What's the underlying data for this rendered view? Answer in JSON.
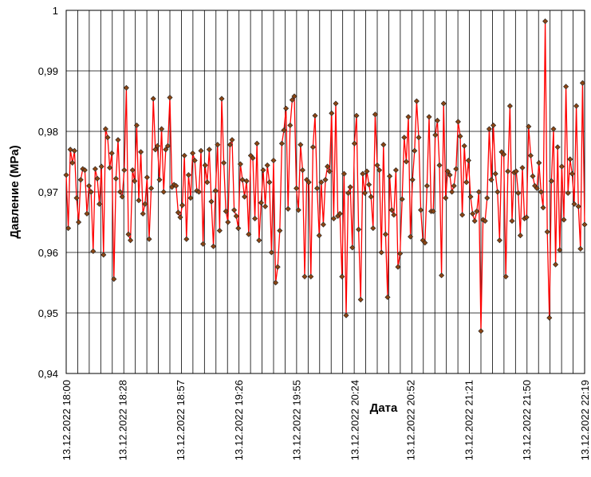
{
  "chart_data": {
    "type": "line",
    "title": "",
    "xlabel": "Дата",
    "ylabel": "Давление (MPa)",
    "ylim": [
      0.94,
      1.0
    ],
    "y_ticks": [
      0.94,
      0.95,
      0.96,
      0.97,
      0.98,
      0.99,
      1.0
    ],
    "y_tick_labels": [
      "0,94",
      "0,95",
      "0,96",
      "0,97",
      "0,98",
      "0,99",
      "1"
    ],
    "x_range_minutes": [
      0,
      259
    ],
    "x_tick_labels": [
      "13.12.2022 18:00",
      "13.12.2022 18:28",
      "13.12.2022 18:57",
      "13.12.2022 19:26",
      "13.12.2022 19:55",
      "13.12.2022 20:24",
      "13.12.2022 20:52",
      "13.12.2022 21:21",
      "13.12.2022 21:50",
      "13.12.2022 22:19"
    ],
    "x_tick_minutes": [
      0,
      28,
      57,
      86,
      115,
      144,
      172,
      201,
      230,
      259
    ],
    "grid": true,
    "colors": {
      "line": "#ff0000",
      "marker_fill": "#8b4513",
      "marker_edge": "#222222",
      "grid": "#000000"
    },
    "series": [
      {
        "values": [
          0.9728,
          0.964,
          0.977,
          0.9748,
          0.9768,
          0.969,
          0.965,
          0.972,
          0.9738,
          0.9736,
          0.9664,
          0.971,
          0.97,
          0.9602,
          0.9738,
          0.9722,
          0.968,
          0.9742,
          0.9596,
          0.9804,
          0.979,
          0.974,
          0.9764,
          0.9556,
          0.9722,
          0.9786,
          0.97,
          0.9692,
          0.9736,
          0.9872,
          0.963,
          0.962,
          0.9736,
          0.9718,
          0.981,
          0.9686,
          0.9766,
          0.9664,
          0.968,
          0.9724,
          0.9622,
          0.9706,
          0.9854,
          0.977,
          0.9776,
          0.972,
          0.9804,
          0.97,
          0.977,
          0.9776,
          0.9856,
          0.9708,
          0.9712,
          0.971,
          0.9666,
          0.9658,
          0.9678,
          0.976,
          0.9622,
          0.9728,
          0.969,
          0.9764,
          0.9752,
          0.9702,
          0.97,
          0.9768,
          0.9614,
          0.9744,
          0.9716,
          0.977,
          0.9684,
          0.961,
          0.9702,
          0.9778,
          0.9636,
          0.9854,
          0.9748,
          0.9668,
          0.965,
          0.9778,
          0.9786,
          0.967,
          0.966,
          0.964,
          0.9746,
          0.972,
          0.9692,
          0.9718,
          0.963,
          0.976,
          0.9756,
          0.9656,
          0.978,
          0.962,
          0.9682,
          0.9736,
          0.9676,
          0.9744,
          0.9716,
          0.96,
          0.9752,
          0.955,
          0.9576,
          0.9636,
          0.978,
          0.9802,
          0.9838,
          0.9672,
          0.981,
          0.9852,
          0.9858,
          0.9706,
          0.967,
          0.9778,
          0.9736,
          0.956,
          0.972,
          0.9716,
          0.956,
          0.9774,
          0.9826,
          0.9706,
          0.9628,
          0.9716,
          0.9646,
          0.972,
          0.9742,
          0.9734,
          0.983,
          0.9656,
          0.9846,
          0.966,
          0.9664,
          0.956,
          0.973,
          0.9496,
          0.9698,
          0.9708,
          0.9608,
          0.978,
          0.9826,
          0.9638,
          0.9522,
          0.973,
          0.9698,
          0.9734,
          0.9712,
          0.9692,
          0.964,
          0.9828,
          0.9744,
          0.9736,
          0.96,
          0.9778,
          0.963,
          0.9526,
          0.9726,
          0.967,
          0.9662,
          0.9736,
          0.9576,
          0.9598,
          0.9688,
          0.979,
          0.975,
          0.9824,
          0.9626,
          0.972,
          0.9768,
          0.985,
          0.979,
          0.967,
          0.962,
          0.9616,
          0.971,
          0.9824,
          0.9668,
          0.9668,
          0.9794,
          0.9818,
          0.9744,
          0.9562,
          0.9846,
          0.969,
          0.9734,
          0.9728,
          0.97,
          0.971,
          0.9738,
          0.9816,
          0.9792,
          0.9662,
          0.9776,
          0.9716,
          0.9752,
          0.9692,
          0.9664,
          0.9652,
          0.9668,
          0.97,
          0.947,
          0.9654,
          0.9652,
          0.969,
          0.9804,
          0.972,
          0.981,
          0.973,
          0.97,
          0.962,
          0.9766,
          0.9762,
          0.956,
          0.9734,
          0.9842,
          0.9652,
          0.9732,
          0.9734,
          0.9698,
          0.9628,
          0.974,
          0.9656,
          0.9658,
          0.9808,
          0.976,
          0.9726,
          0.971,
          0.9706,
          0.9748,
          0.97,
          0.9674,
          0.9982,
          0.9634,
          0.9492,
          0.9718,
          0.9804,
          0.958,
          0.9774,
          0.9604,
          0.9742,
          0.9654,
          0.9874,
          0.9698,
          0.9754,
          0.973,
          0.968,
          0.9842,
          0.9676,
          0.9606,
          0.988,
          0.9646
        ]
      }
    ]
  }
}
